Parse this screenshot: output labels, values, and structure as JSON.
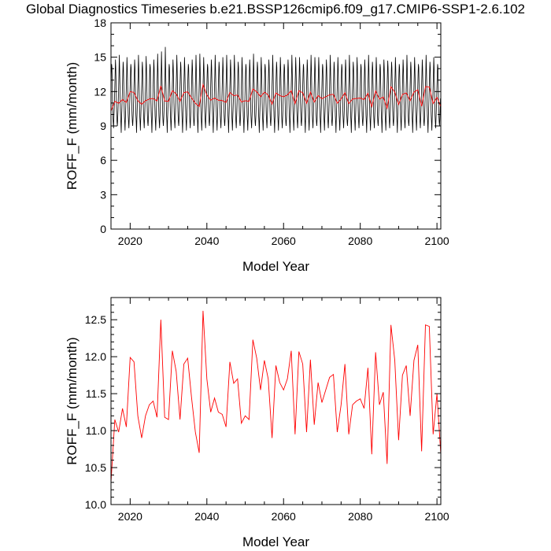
{
  "title": "Global Diagnostics Timeseries b.e21.BSSP126cmip6.f09_g17.CMIP6-SSP1-2.6.102",
  "colors": {
    "monthly": "#000000",
    "annual": "#ff0000"
  },
  "chart_data": [
    {
      "type": "line",
      "xlabel": "Model Year",
      "ylabel": "ROFF_F (mm/month)",
      "xlim": [
        2015,
        2101
      ],
      "ylim": [
        0,
        18
      ],
      "xticks": [
        2020,
        2040,
        2060,
        2080,
        2100
      ],
      "yticks": [
        0,
        3,
        6,
        9,
        12,
        15,
        18
      ],
      "xtick_labels": [
        "2020",
        "2040",
        "2060",
        "2080",
        "2100"
      ],
      "ytick_labels": [
        "0",
        "3",
        "6",
        "9",
        "12",
        "15",
        "18"
      ],
      "monthly_series": {
        "start_year": 2015,
        "points_per_year": 12,
        "initial_value": 0,
        "annual_cycle": [
          12.5,
          13.6,
          14.6,
          14.1,
          12.6,
          11.0,
          9.9,
          9.3,
          9.0,
          9.6,
          10.4,
          11.4
        ],
        "peak_overrides": [
          [
            2024,
            15.1
          ],
          [
            2027,
            15.3
          ],
          [
            2028,
            15.5
          ],
          [
            2029,
            15.9
          ],
          [
            2038,
            15.3
          ],
          [
            2045,
            15.2
          ],
          [
            2052,
            15.3
          ],
          [
            2063,
            15.0
          ],
          [
            2068,
            15.0
          ],
          [
            2087,
            14.7
          ]
        ]
      },
      "annual_series": {
        "x": [
          2015,
          2016,
          2017,
          2018,
          2019,
          2020,
          2021,
          2022,
          2023,
          2024,
          2025,
          2026,
          2027,
          2028,
          2029,
          2030,
          2031,
          2032,
          2033,
          2034,
          2035,
          2036,
          2037,
          2038,
          2039,
          2040,
          2041,
          2042,
          2043,
          2044,
          2045,
          2046,
          2047,
          2048,
          2049,
          2050,
          2051,
          2052,
          2053,
          2054,
          2055,
          2056,
          2057,
          2058,
          2059,
          2060,
          2061,
          2062,
          2063,
          2064,
          2065,
          2066,
          2067,
          2068,
          2069,
          2070,
          2071,
          2072,
          2073,
          2074,
          2075,
          2076,
          2077,
          2078,
          2079,
          2080,
          2081,
          2082,
          2083,
          2084,
          2085,
          2086,
          2087,
          2088,
          2089,
          2090,
          2091,
          2092,
          2093,
          2094,
          2095,
          2096,
          2097,
          2098,
          2099,
          2100,
          2101
        ],
        "y": [
          10.3,
          11.15,
          10.98,
          11.3,
          11.05,
          11.99,
          11.93,
          11.2,
          10.9,
          11.2,
          11.35,
          11.4,
          11.18,
          12.5,
          11.18,
          11.15,
          12.08,
          11.8,
          11.15,
          11.9,
          11.98,
          11.45,
          10.98,
          10.7,
          12.62,
          11.7,
          11.25,
          11.44,
          11.25,
          11.22,
          11.05,
          11.93,
          11.64,
          11.7,
          11.1,
          11.2,
          11.15,
          12.23,
          11.98,
          11.55,
          11.95,
          11.7,
          10.9,
          11.88,
          11.65,
          11.55,
          11.7,
          12.08,
          10.95,
          12.07,
          11.9,
          10.98,
          11.96,
          11.08,
          11.65,
          11.38,
          11.55,
          11.72,
          11.76,
          10.98,
          11.35,
          11.9,
          10.95,
          11.35,
          11.4,
          11.43,
          11.3,
          11.85,
          10.68,
          12.06,
          11.35,
          11.52,
          10.55,
          12.43,
          11.95,
          10.87,
          11.75,
          11.88,
          11.2,
          11.95,
          12.16,
          10.72,
          12.43,
          12.41,
          10.95,
          11.5,
          10.68
        ]
      }
    },
    {
      "type": "line",
      "xlabel": "Model Year",
      "ylabel": "ROFF_F (mm/month)",
      "xlim": [
        2015,
        2101
      ],
      "ylim": [
        10.0,
        12.8
      ],
      "xticks": [
        2020,
        2040,
        2060,
        2080,
        2100
      ],
      "yticks": [
        10.0,
        10.5,
        11.0,
        11.5,
        12.0,
        12.5
      ],
      "xtick_labels": [
        "2020",
        "2040",
        "2060",
        "2080",
        "2100"
      ],
      "ytick_labels": [
        "10.0",
        "10.5",
        "11.0",
        "11.5",
        "12.0",
        "12.5"
      ],
      "series_ref": "annual_series"
    }
  ]
}
